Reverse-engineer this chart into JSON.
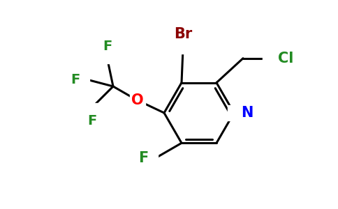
{
  "background_color": "#ffffff",
  "bond_color": "#000000",
  "atom_colors": {
    "Br": "#8b0000",
    "N": "#0000ff",
    "O": "#ff0000",
    "F": "#228b22",
    "Cl": "#228b22",
    "C": "#000000"
  },
  "figsize": [
    4.84,
    3.0
  ],
  "dpi": 100,
  "lw": 2.2
}
